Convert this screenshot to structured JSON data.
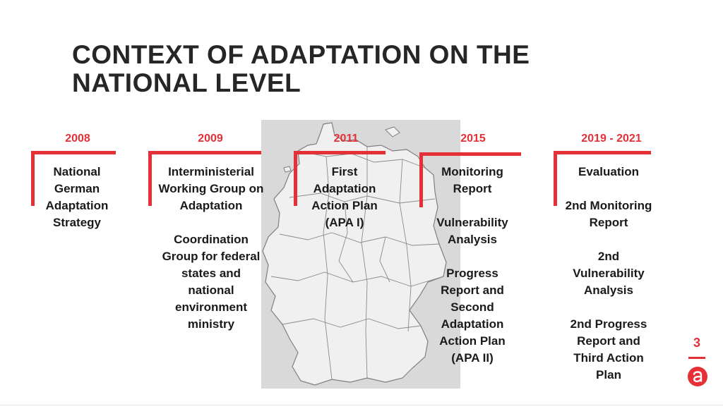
{
  "slide": {
    "title_line1": "CONTEXT OF ADAPTATION ON THE",
    "title_line2": "NATIONAL LEVEL",
    "page_number": "3",
    "accent_color": "#e63037",
    "map_background": "#d9d9d9",
    "logo_icon": "a-letter-logo-icon"
  },
  "timeline": [
    {
      "year": "2008",
      "items": [
        "National German Adaptation Strategy"
      ]
    },
    {
      "year": "2009",
      "items": [
        "Interministerial Working Group on Adaptation",
        "Coordination Group for federal states and national environment ministry"
      ]
    },
    {
      "year": "2011",
      "items": [
        "First Adaptation Action Plan (APA I)"
      ]
    },
    {
      "year": "2015",
      "items": [
        "Monitoring Report",
        "Vulnerability Analysis",
        "Progress Report and Second Adaptation Action Plan (APA II)"
      ]
    },
    {
      "year": "2019 - 2021",
      "items": [
        "Evaluation",
        "2nd Monitoring Report",
        "2nd Vulnerability Analysis",
        "2nd Progress Report and Third Action Plan"
      ]
    }
  ]
}
